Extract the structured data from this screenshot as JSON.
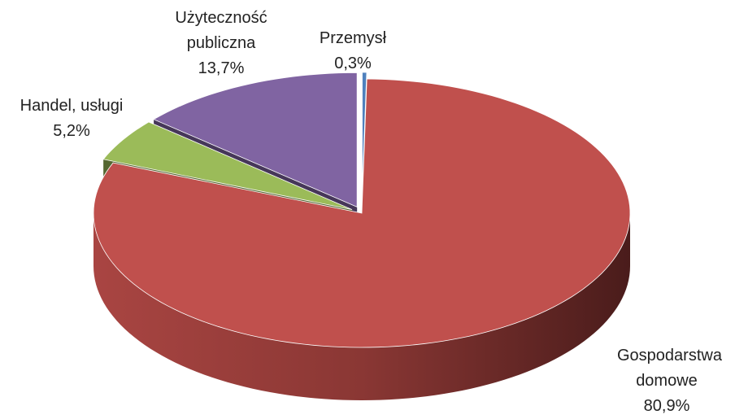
{
  "chart_data": {
    "type": "pie3d",
    "categories": [
      "Przemysł",
      "Gospodarstwa domowe",
      "Handel, usługi",
      "Użyteczność publiczna"
    ],
    "values": [
      0.3,
      80.9,
      5.2,
      13.7
    ],
    "value_labels": [
      "0,3%",
      "80,9%",
      "5,2%",
      "13,7%"
    ],
    "colors": [
      "#4f81bd",
      "#c0504d",
      "#9bbb59",
      "#8064a2"
    ]
  }
}
